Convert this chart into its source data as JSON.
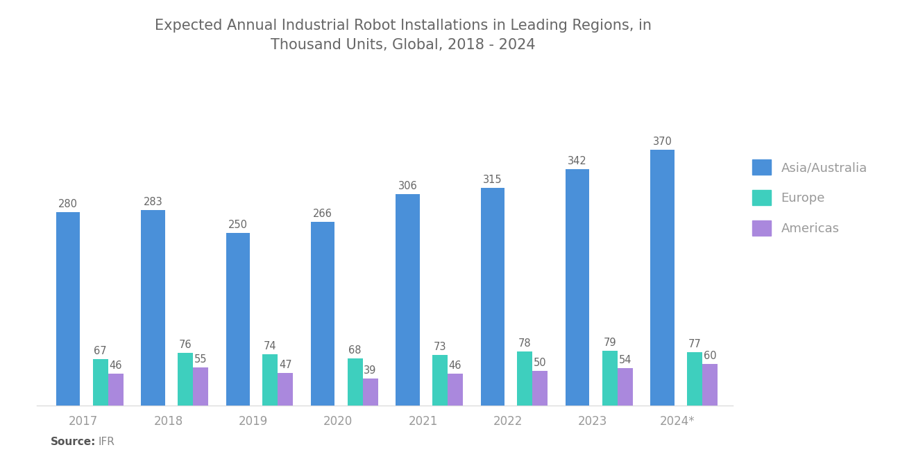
{
  "title": "Expected Annual Industrial Robot Installations in Leading Regions, in\nThousand Units, Global, 2018 - 2024",
  "years": [
    "2017",
    "2018",
    "2019",
    "2020",
    "2021",
    "2022",
    "2023",
    "2024*"
  ],
  "asia": [
    280,
    283,
    250,
    266,
    306,
    315,
    342,
    370
  ],
  "europe": [
    67,
    76,
    74,
    68,
    73,
    78,
    79,
    77
  ],
  "americas": [
    46,
    55,
    47,
    39,
    46,
    50,
    54,
    60
  ],
  "color_asia": "#4A90D9",
  "color_europe": "#3ECFBE",
  "color_americas": "#AA88DD",
  "legend_labels": [
    "Asia/Australia",
    "Europe",
    "Americas"
  ],
  "source_bold": "Source:",
  "source_name": "IFR",
  "background_color": "#FFFFFF",
  "asia_bar_width": 0.28,
  "small_bar_width": 0.18,
  "title_fontsize": 15,
  "tick_fontsize": 12,
  "legend_fontsize": 13,
  "value_fontsize": 10.5,
  "label_color": "#666666",
  "tick_color": "#999999"
}
